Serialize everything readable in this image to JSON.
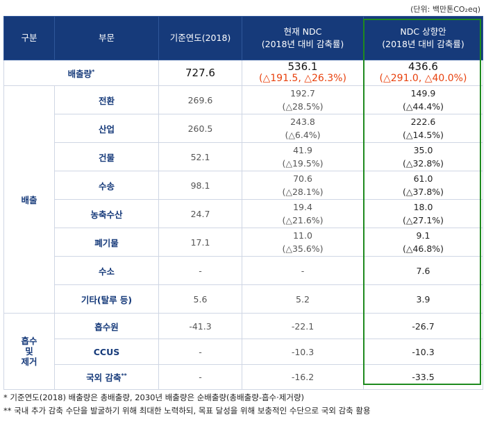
{
  "unit_note": "(단위: 백만톤CO₂eq)",
  "header": {
    "category": "구분",
    "sector": "부문",
    "base": "기준연도(2018)",
    "current_line1": "현재 NDC",
    "current_line2": "(2018년 대비 감축률)",
    "raised_line1": "NDC 상향안",
    "raised_line2": "(2018년 대비 감축률)"
  },
  "emission_total": {
    "label": "배출량",
    "label_mark": "*",
    "base": "727.6",
    "current": "536.1",
    "current_rate": "(△191.5, △26.3%)",
    "raised": "436.6",
    "raised_rate": "(△291.0, △40.0%)"
  },
  "emissions_group_label": "배출",
  "emissions": [
    {
      "sector": "전환",
      "base": "269.6",
      "current": "192.7",
      "current_rate": "(△28.5%)",
      "raised": "149.9",
      "raised_rate": "(△44.4%)"
    },
    {
      "sector": "산업",
      "base": "260.5",
      "current": "243.8",
      "current_rate": "(△6.4%)",
      "raised": "222.6",
      "raised_rate": "(△14.5%)"
    },
    {
      "sector": "건물",
      "base": "52.1",
      "current": "41.9",
      "current_rate": "(△19.5%)",
      "raised": "35.0",
      "raised_rate": "(△32.8%)"
    },
    {
      "sector": "수송",
      "base": "98.1",
      "current": "70.6",
      "current_rate": "(△28.1%)",
      "raised": "61.0",
      "raised_rate": "(△37.8%)"
    },
    {
      "sector": "농축수산",
      "base": "24.7",
      "current": "19.4",
      "current_rate": "(△21.6%)",
      "raised": "18.0",
      "raised_rate": "(△27.1%)"
    },
    {
      "sector": "폐기물",
      "base": "17.1",
      "current": "11.0",
      "current_rate": "(△35.6%)",
      "raised": "9.1",
      "raised_rate": "(△46.8%)"
    },
    {
      "sector": "수소",
      "base": "-",
      "current": "-",
      "current_rate": "",
      "raised": "7.6",
      "raised_rate": ""
    },
    {
      "sector": "기타(탈루 등)",
      "base": "5.6",
      "current": "5.2",
      "current_rate": "",
      "raised": "3.9",
      "raised_rate": ""
    }
  ],
  "absorption_group_label": [
    "흡수",
    "및",
    "제거"
  ],
  "absorption": [
    {
      "sector": "흡수원",
      "base": "-41.3",
      "current": "-22.1",
      "raised": "-26.7"
    },
    {
      "sector": "CCUS",
      "base": "-",
      "current": "-10.3",
      "raised": "-10.3"
    },
    {
      "sector": "국외 감축",
      "sector_mark": "**",
      "base": "-",
      "current": "-16.2",
      "raised": "-33.5"
    }
  ],
  "notes": [
    "*   기준연도(2018) 배출량은 총배출량, 2030년 배출량은 순배출량(총배출량-흡수·제거량)",
    "** 국내 추가 감축 수단을 발굴하기 위해 최대한 노력하되, 목표 달성을 위해 보충적인 수단으로 국외 감축 활용"
  ],
  "colors": {
    "header_bg": "#163a7a",
    "label_blue": "#163a7a",
    "rate_red": "#e8400c",
    "highlight_green": "#1e8a1e"
  }
}
